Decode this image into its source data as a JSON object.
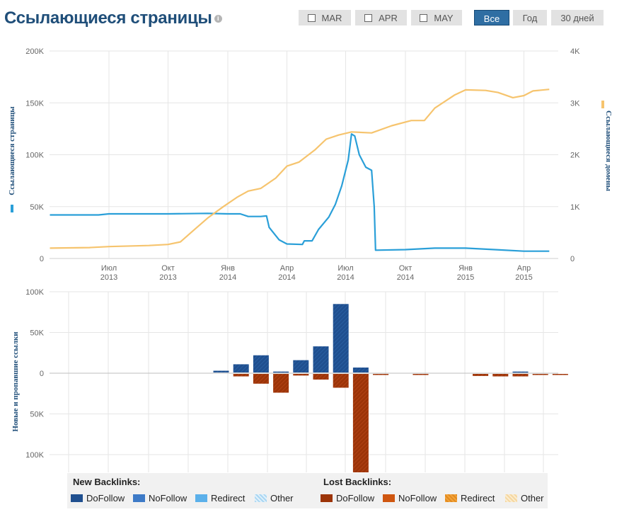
{
  "header": {
    "title": "Ссылающиеся страницы",
    "info_glyph": "i",
    "month_toggles": [
      "MAR",
      "APR",
      "MAY"
    ],
    "range_buttons": [
      {
        "label": "Все",
        "active": true
      },
      {
        "label": "Год",
        "active": false
      },
      {
        "label": "30 дней",
        "active": false
      }
    ]
  },
  "colors": {
    "pages": "#2a9fd8",
    "domains": "#f6c46e",
    "dofollow": "#1f4f8f",
    "nofollow": "#3d7ac7",
    "redirect": "#5bb0ea",
    "other_new": "#a9d6f2",
    "lost_dofollow": "#9c3408",
    "lost_nofollow": "#cf5610",
    "lost_redirect": "#f2a33a",
    "lost_other": "#f5d7a0",
    "active_button": "#2f6ea3"
  },
  "chart_data": [
    {
      "type": "line",
      "left_axis_label": "Ссылающиеся страницы",
      "right_axis_label": "Ссылающиеся домены",
      "y_left_ticks": [
        "0",
        "50K",
        "100K",
        "150K",
        "200K"
      ],
      "y_left_range": [
        0,
        200000
      ],
      "y_right_ticks": [
        "0",
        "1K",
        "2K",
        "3K",
        "4K"
      ],
      "y_right_range": [
        0,
        4000
      ],
      "x_ticks": [
        {
          "month": "Июл",
          "year": "2013"
        },
        {
          "month": "Окт",
          "year": "2013"
        },
        {
          "month": "Янв",
          "year": "2014"
        },
        {
          "month": "Апр",
          "year": "2014"
        },
        {
          "month": "Июл",
          "year": "2014"
        },
        {
          "month": "Окт",
          "year": "2014"
        },
        {
          "month": "Янв",
          "year": "2015"
        },
        {
          "month": "Апр",
          "year": "2015"
        }
      ],
      "grid": true,
      "series": [
        {
          "name": "Ссылающиеся страницы",
          "axis": "left",
          "points": [
            [
              "2013-04-01",
              42000
            ],
            [
              "2013-06-15",
              42000
            ],
            [
              "2013-07-01",
              43000
            ],
            [
              "2013-10-01",
              43000
            ],
            [
              "2013-12-01",
              43500
            ],
            [
              "2014-01-01",
              43000
            ],
            [
              "2014-01-20",
              43000
            ],
            [
              "2014-02-01",
              40500
            ],
            [
              "2014-02-20",
              40500
            ],
            [
              "2014-03-01",
              41000
            ],
            [
              "2014-03-05",
              30000
            ],
            [
              "2014-03-20",
              18000
            ],
            [
              "2014-04-01",
              14000
            ],
            [
              "2014-04-25",
              13500
            ],
            [
              "2014-04-28",
              17000
            ],
            [
              "2014-05-10",
              17000
            ],
            [
              "2014-05-20",
              28000
            ],
            [
              "2014-06-05",
              40000
            ],
            [
              "2014-06-15",
              52000
            ],
            [
              "2014-06-25",
              70000
            ],
            [
              "2014-07-05",
              95000
            ],
            [
              "2014-07-10",
              120000
            ],
            [
              "2014-07-15",
              118000
            ],
            [
              "2014-07-22",
              100000
            ],
            [
              "2014-08-01",
              88000
            ],
            [
              "2014-08-10",
              85000
            ],
            [
              "2014-08-14",
              50000
            ],
            [
              "2014-08-16",
              8000
            ],
            [
              "2014-10-01",
              8500
            ],
            [
              "2014-11-15",
              10000
            ],
            [
              "2015-01-01",
              10000
            ],
            [
              "2015-02-15",
              8500
            ],
            [
              "2015-04-01",
              7000
            ],
            [
              "2015-05-10",
              7000
            ]
          ]
        },
        {
          "name": "Ссылающиеся домены",
          "axis": "right",
          "points": [
            [
              "2013-04-01",
              200
            ],
            [
              "2013-06-01",
              210
            ],
            [
              "2013-07-01",
              230
            ],
            [
              "2013-09-01",
              250
            ],
            [
              "2013-10-01",
              270
            ],
            [
              "2013-10-20",
              320
            ],
            [
              "2013-11-10",
              550
            ],
            [
              "2013-12-01",
              780
            ],
            [
              "2013-12-25",
              1000
            ],
            [
              "2014-01-15",
              1180
            ],
            [
              "2014-02-01",
              1300
            ],
            [
              "2014-02-20",
              1350
            ],
            [
              "2014-03-15",
              1550
            ],
            [
              "2014-04-01",
              1780
            ],
            [
              "2014-04-20",
              1860
            ],
            [
              "2014-05-15",
              2100
            ],
            [
              "2014-06-01",
              2300
            ],
            [
              "2014-06-20",
              2380
            ],
            [
              "2014-07-10",
              2440
            ],
            [
              "2014-08-10",
              2420
            ],
            [
              "2014-09-10",
              2560
            ],
            [
              "2014-10-10",
              2660
            ],
            [
              "2014-10-30",
              2660
            ],
            [
              "2014-11-15",
              2900
            ],
            [
              "2014-12-15",
              3150
            ],
            [
              "2015-01-01",
              3250
            ],
            [
              "2015-02-01",
              3240
            ],
            [
              "2015-02-20",
              3200
            ],
            [
              "2015-03-15",
              3100
            ],
            [
              "2015-04-01",
              3140
            ],
            [
              "2015-04-15",
              3230
            ],
            [
              "2015-05-10",
              3260
            ]
          ]
        }
      ]
    },
    {
      "type": "bar",
      "y_axis_label": "Новые и пропавшие ссылки",
      "y_ticks": [
        "100K",
        "50K",
        "0",
        "50K",
        "100K"
      ],
      "y_range": [
        -100000,
        100000
      ],
      "grid": true,
      "series": [
        {
          "name": "New Backlinks: DoFollow",
          "points": [
            [
              "2013-12-15",
              3000
            ],
            [
              "2014-01-15",
              11000
            ],
            [
              "2014-02-15",
              22000
            ],
            [
              "2014-03-15",
              2000
            ],
            [
              "2014-04-15",
              16000
            ],
            [
              "2014-05-15",
              33000
            ],
            [
              "2014-06-15",
              85000
            ],
            [
              "2014-07-15",
              7000
            ],
            [
              "2015-03-15",
              2000
            ]
          ]
        },
        {
          "name": "Lost Backlinks: DoFollow",
          "points": [
            [
              "2014-01-15",
              -3000
            ],
            [
              "2014-02-15",
              -12000
            ],
            [
              "2014-03-15",
              -23000
            ],
            [
              "2014-04-15",
              -2000
            ],
            [
              "2014-05-15",
              -7000
            ],
            [
              "2014-06-15",
              -17000
            ],
            [
              "2014-07-15",
              -122000
            ],
            [
              "2014-08-15",
              -1000
            ],
            [
              "2014-10-15",
              -1000
            ],
            [
              "2015-01-15",
              -2500
            ],
            [
              "2015-02-15",
              -3000
            ],
            [
              "2015-03-15",
              -3000
            ],
            [
              "2015-04-15",
              -1000
            ],
            [
              "2015-05-15",
              -1000
            ]
          ]
        }
      ]
    }
  ],
  "legend": {
    "new_title": "New Backlinks:",
    "lost_title": "Lost Backlinks:",
    "new_items": [
      {
        "label": "DoFollow",
        "style": "dofollow"
      },
      {
        "label": "NoFollow",
        "style": "nofollow"
      },
      {
        "label": "Redirect",
        "style": "redirect"
      },
      {
        "label": "Other",
        "style": "other_new"
      }
    ],
    "lost_items": [
      {
        "label": "DoFollow",
        "style": "lost_dofollow"
      },
      {
        "label": "NoFollow",
        "style": "lost_nofollow"
      },
      {
        "label": "Redirect",
        "style": "lost_redirect"
      },
      {
        "label": "Other",
        "style": "lost_other"
      }
    ]
  }
}
